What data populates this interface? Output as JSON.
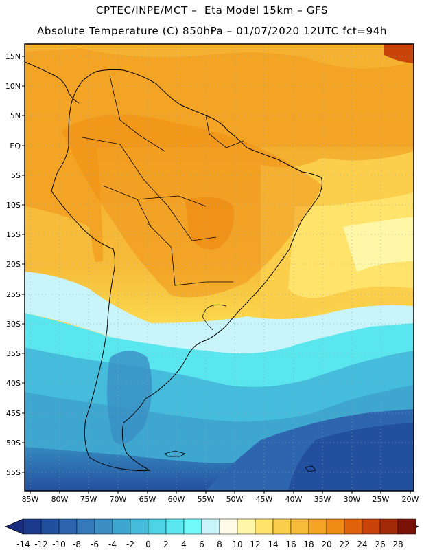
{
  "header": {
    "line1": "CPTEC/INPE/MCT –  Eta Model 15km – GFS",
    "line2": "Absolute Temperature (C) 850hPa – 01/07/2020 12UTC fct=94h"
  },
  "axes": {
    "lat_labels": [
      "15N",
      "10N",
      "5N",
      "EQ",
      "5S",
      "10S",
      "15S",
      "20S",
      "25S",
      "30S",
      "35S",
      "40S",
      "45S",
      "50S",
      "55S"
    ],
    "lon_labels": [
      "85W",
      "80W",
      "75W",
      "70W",
      "65W",
      "60W",
      "55W",
      "50W",
      "45W",
      "40W",
      "35W",
      "30W",
      "25W",
      "20W"
    ]
  },
  "colorbar": {
    "labels": [
      "-14",
      "-12",
      "-10",
      "-8",
      "-6",
      "-4",
      "-2",
      "0",
      "2",
      "4",
      "6",
      "8",
      "10",
      "12",
      "14",
      "16",
      "18",
      "20",
      "22",
      "24",
      "26",
      "28"
    ],
    "colors": [
      "#1c3a8c",
      "#23509e",
      "#2d65ae",
      "#3579b8",
      "#3a8ec4",
      "#3fa6d0",
      "#45bcdc",
      "#4dd2e6",
      "#5ae6ee",
      "#70fafa",
      "#c9f4fa",
      "#fffbe6",
      "#fff7a8",
      "#ffe36a",
      "#fbcf4c",
      "#f6bc3a",
      "#f3a424",
      "#ef8a12",
      "#e0620a",
      "#c84408",
      "#a22a08",
      "#7a1408"
    ],
    "low_end_color": "#1a2c80",
    "high_end_color": "#6a0b1e"
  }
}
